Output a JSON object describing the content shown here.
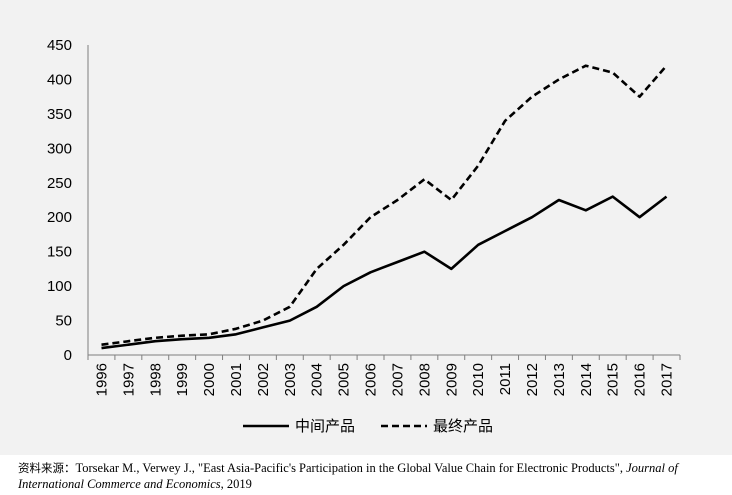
{
  "chart_data": {
    "type": "line",
    "categories": [
      "1996",
      "1997",
      "1998",
      "1999",
      "2000",
      "2001",
      "2002",
      "2003",
      "2004",
      "2005",
      "2006",
      "2007",
      "2008",
      "2009",
      "2010",
      "2011",
      "2012",
      "2013",
      "2014",
      "2015",
      "2016",
      "2017"
    ],
    "ylim": [
      0,
      450
    ],
    "yticks": [
      0,
      50,
      100,
      150,
      200,
      250,
      300,
      350,
      400,
      450
    ],
    "grid": false,
    "legend_position": "bottom",
    "series": [
      {
        "name": "中间产品",
        "style": "solid",
        "color": "#000000",
        "values": [
          10,
          15,
          20,
          23,
          25,
          30,
          40,
          50,
          70,
          100,
          120,
          135,
          150,
          125,
          160,
          180,
          200,
          225,
          210,
          230,
          200,
          230
        ]
      },
      {
        "name": "最终产品",
        "style": "dashed",
        "color": "#000000",
        "values": [
          15,
          20,
          25,
          28,
          30,
          38,
          50,
          70,
          125,
          160,
          200,
          225,
          255,
          225,
          275,
          340,
          375,
          400,
          420,
          410,
          375,
          420
        ]
      }
    ]
  },
  "source": {
    "label": "资料来源：",
    "text": "Torsekar M., Verwey J., \"East Asia-Pacific's Participation in the Global Value Chain for Electronic Products\",",
    "journal": "Journal of International Commerce and Economics",
    "year": ", 2019"
  }
}
